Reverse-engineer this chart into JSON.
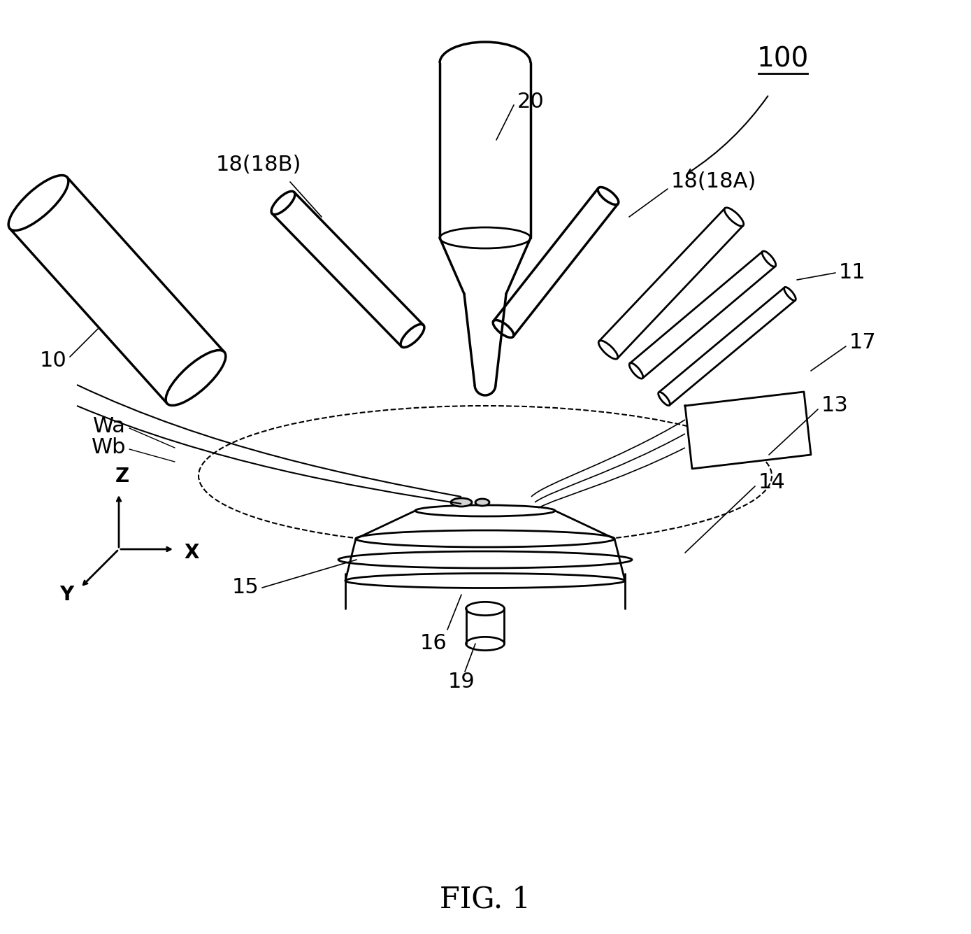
{
  "bg_color": "#ffffff",
  "line_color": "#000000",
  "title": "FIG. 1",
  "label_100": "100",
  "label_20": "20",
  "label_18B": "18(18B)",
  "label_18A": "18(18A)",
  "label_10": "10",
  "label_11": "11",
  "label_13": "13",
  "label_14": "14",
  "label_15": "15",
  "label_16": "16",
  "label_17": "17",
  "label_19": "19",
  "label_Wa": "Wa",
  "label_Wb": "Wb",
  "label_Z": "Z",
  "label_X": "X",
  "label_Y": "Y"
}
